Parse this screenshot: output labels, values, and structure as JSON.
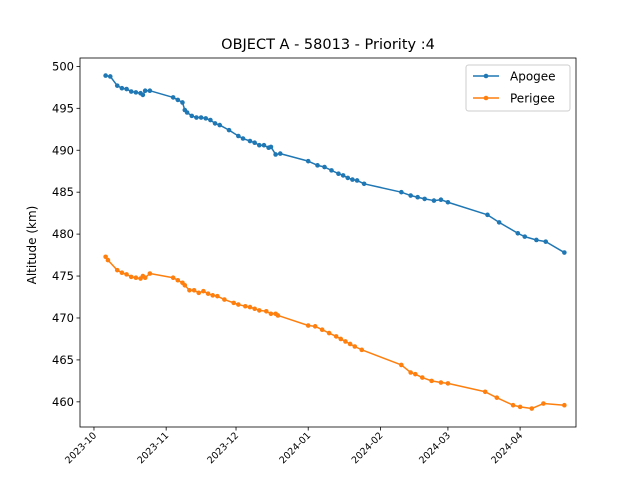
{
  "chart_data": {
    "type": "line",
    "title": "OBJECT A - 58013 - Priority :4",
    "xlabel": "",
    "ylabel": "Altitude (km)",
    "x_type": "date",
    "xlim": [
      "2023-09-25",
      "2024-04-25"
    ],
    "ylim": [
      457.0,
      501.0
    ],
    "x_ticks": [
      "2023-10-01",
      "2023-11-01",
      "2023-12-01",
      "2024-01-01",
      "2024-02-01",
      "2024-03-01",
      "2024-04-01"
    ],
    "x_tick_labels": [
      "2023-10",
      "2023-11",
      "2023-12",
      "2024-01",
      "2024-02",
      "2024-03",
      "2024-04"
    ],
    "y_ticks": [
      460,
      465,
      470,
      475,
      480,
      485,
      490,
      495,
      500
    ],
    "grid": false,
    "legend_position": "top-right",
    "series": [
      {
        "name": "Apogee",
        "color": "#1f77b4",
        "points": [
          [
            "2023-10-06",
            498.9
          ],
          [
            "2023-10-08",
            498.8
          ],
          [
            "2023-10-11",
            497.7
          ],
          [
            "2023-10-13",
            497.4
          ],
          [
            "2023-10-15",
            497.3
          ],
          [
            "2023-10-17",
            497.0
          ],
          [
            "2023-10-19",
            496.9
          ],
          [
            "2023-10-21",
            496.8
          ],
          [
            "2023-10-22",
            496.6
          ],
          [
            "2023-10-23",
            497.1
          ],
          [
            "2023-10-25",
            497.1
          ],
          [
            "2023-11-04",
            496.3
          ],
          [
            "2023-11-06",
            496.0
          ],
          [
            "2023-11-08",
            495.7
          ],
          [
            "2023-11-09",
            494.8
          ],
          [
            "2023-11-10",
            494.5
          ],
          [
            "2023-11-12",
            494.1
          ],
          [
            "2023-11-14",
            493.9
          ],
          [
            "2023-11-16",
            493.9
          ],
          [
            "2023-11-18",
            493.8
          ],
          [
            "2023-11-20",
            493.6
          ],
          [
            "2023-11-22",
            493.2
          ],
          [
            "2023-11-24",
            493.0
          ],
          [
            "2023-11-28",
            492.4
          ],
          [
            "2023-12-02",
            491.7
          ],
          [
            "2023-12-04",
            491.4
          ],
          [
            "2023-12-07",
            491.1
          ],
          [
            "2023-12-09",
            490.9
          ],
          [
            "2023-12-11",
            490.6
          ],
          [
            "2023-12-13",
            490.6
          ],
          [
            "2023-12-15",
            490.3
          ],
          [
            "2023-12-16",
            490.4
          ],
          [
            "2023-12-18",
            489.5
          ],
          [
            "2023-12-20",
            489.6
          ],
          [
            "2024-01-01",
            488.7
          ],
          [
            "2024-01-05",
            488.2
          ],
          [
            "2024-01-08",
            488.0
          ],
          [
            "2024-01-11",
            487.6
          ],
          [
            "2024-01-14",
            487.2
          ],
          [
            "2024-01-16",
            487.0
          ],
          [
            "2024-01-18",
            486.7
          ],
          [
            "2024-01-20",
            486.5
          ],
          [
            "2024-01-22",
            486.4
          ],
          [
            "2024-01-25",
            486.0
          ],
          [
            "2024-02-10",
            485.0
          ],
          [
            "2024-02-14",
            484.6
          ],
          [
            "2024-02-17",
            484.4
          ],
          [
            "2024-02-20",
            484.2
          ],
          [
            "2024-02-24",
            484.0
          ],
          [
            "2024-02-27",
            484.1
          ],
          [
            "2024-03-01",
            483.8
          ],
          [
            "2024-03-18",
            482.3
          ],
          [
            "2024-03-23",
            481.4
          ],
          [
            "2024-03-31",
            480.1
          ],
          [
            "2024-04-03",
            479.7
          ],
          [
            "2024-04-08",
            479.3
          ],
          [
            "2024-04-12",
            479.1
          ],
          [
            "2024-04-20",
            477.8
          ]
        ]
      },
      {
        "name": "Perigee",
        "color": "#ff7f0e",
        "points": [
          [
            "2023-10-06",
            477.3
          ],
          [
            "2023-10-07",
            476.9
          ],
          [
            "2023-10-11",
            475.7
          ],
          [
            "2023-10-13",
            475.4
          ],
          [
            "2023-10-15",
            475.2
          ],
          [
            "2023-10-17",
            474.9
          ],
          [
            "2023-10-19",
            474.8
          ],
          [
            "2023-10-21",
            474.7
          ],
          [
            "2023-10-22",
            475.0
          ],
          [
            "2023-10-23",
            474.8
          ],
          [
            "2023-10-25",
            475.3
          ],
          [
            "2023-11-04",
            474.8
          ],
          [
            "2023-11-06",
            474.5
          ],
          [
            "2023-11-08",
            474.2
          ],
          [
            "2023-11-09",
            473.9
          ],
          [
            "2023-11-11",
            473.3
          ],
          [
            "2023-11-13",
            473.3
          ],
          [
            "2023-11-15",
            473.0
          ],
          [
            "2023-11-17",
            473.2
          ],
          [
            "2023-11-19",
            472.9
          ],
          [
            "2023-11-21",
            472.7
          ],
          [
            "2023-11-23",
            472.6
          ],
          [
            "2023-11-26",
            472.2
          ],
          [
            "2023-11-30",
            471.8
          ],
          [
            "2023-12-02",
            471.6
          ],
          [
            "2023-12-05",
            471.4
          ],
          [
            "2023-12-07",
            471.3
          ],
          [
            "2023-12-09",
            471.1
          ],
          [
            "2023-12-11",
            470.9
          ],
          [
            "2023-12-14",
            470.8
          ],
          [
            "2023-12-16",
            470.5
          ],
          [
            "2023-12-18",
            470.5
          ],
          [
            "2023-12-19",
            470.3
          ],
          [
            "2024-01-01",
            469.1
          ],
          [
            "2024-01-04",
            469.0
          ],
          [
            "2024-01-07",
            468.6
          ],
          [
            "2024-01-10",
            468.2
          ],
          [
            "2024-01-13",
            467.8
          ],
          [
            "2024-01-15",
            467.5
          ],
          [
            "2024-01-17",
            467.2
          ],
          [
            "2024-01-19",
            466.9
          ],
          [
            "2024-01-21",
            466.6
          ],
          [
            "2024-01-24",
            466.2
          ],
          [
            "2024-02-10",
            464.4
          ],
          [
            "2024-02-14",
            463.5
          ],
          [
            "2024-02-16",
            463.3
          ],
          [
            "2024-02-19",
            462.9
          ],
          [
            "2024-02-23",
            462.5
          ],
          [
            "2024-02-27",
            462.3
          ],
          [
            "2024-03-01",
            462.2
          ],
          [
            "2024-03-17",
            461.2
          ],
          [
            "2024-03-22",
            460.5
          ],
          [
            "2024-03-29",
            459.6
          ],
          [
            "2024-04-01",
            459.4
          ],
          [
            "2024-04-06",
            459.2
          ],
          [
            "2024-04-11",
            459.8
          ],
          [
            "2024-04-20",
            459.6
          ]
        ]
      }
    ]
  }
}
